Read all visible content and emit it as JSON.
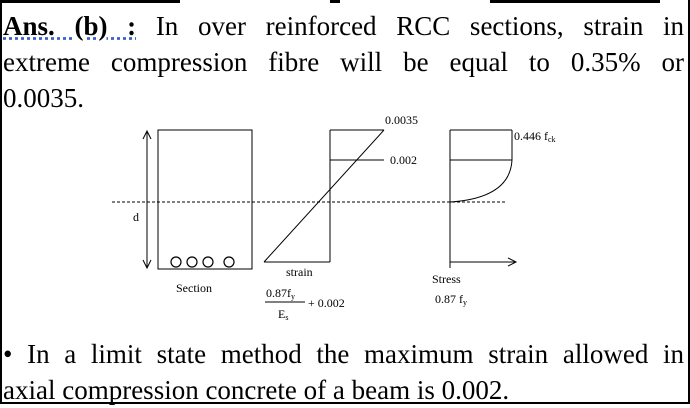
{
  "answer": {
    "label": "Ans. (b) :",
    "line1_rest": "In over reinforced RCC sections, strain in",
    "line2": "extreme compression fibre will be equal to  0.35% or",
    "line3": "0.0035."
  },
  "diagram": {
    "strain_top": "0.0035",
    "strain_mid": "0.002",
    "depth_label": "d",
    "section_label": "Section",
    "strain_label": "strain",
    "stress_label": "Stress",
    "stress_top": "0.446 f",
    "stress_top_sub": "ck",
    "formula_num": "0.87f",
    "formula_num_sub": "y",
    "formula_den": "E",
    "formula_den_sub": "s",
    "formula_rest": "+ 0.002",
    "stress_bottom": "0.87 f",
    "stress_bottom_sub": "y"
  },
  "bullet": {
    "line1": "• In a limit state method the maximum strain allowed in",
    "line2": "axial compression concrete of a beam is 0.002."
  }
}
